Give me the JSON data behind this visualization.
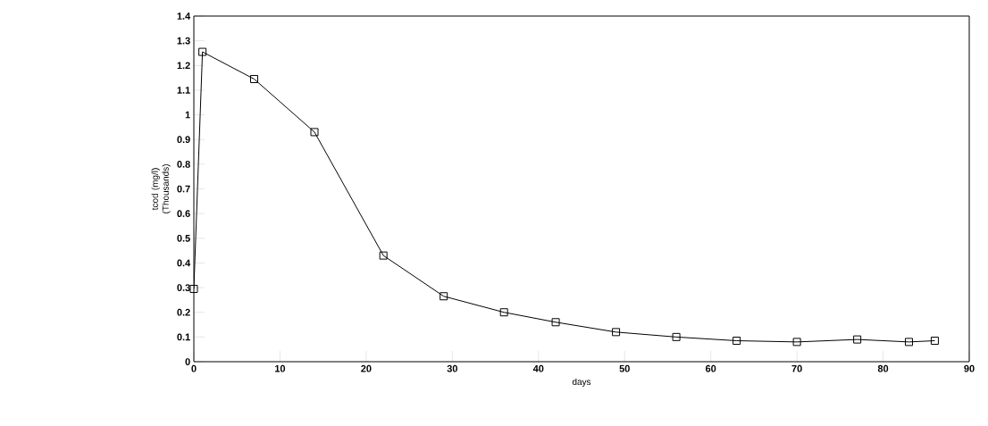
{
  "chart_data": {
    "type": "line",
    "xlabel": "days",
    "ylabel": "tcod (mg/l) (Thousands)",
    "x": [
      0,
      1,
      7,
      14,
      22,
      29,
      36,
      42,
      49,
      56,
      63,
      70,
      77,
      83,
      86
    ],
    "series": [
      {
        "color": "#000000",
        "values": [
          0.295,
          1.255,
          1.145,
          0.93,
          0.43,
          0.265,
          0.2,
          0.16,
          0.12,
          0.1,
          0.085,
          0.08,
          0.09,
          0.08,
          0.085
        ]
      }
    ],
    "xlim": [
      0,
      90
    ],
    "ylim": [
      0,
      1.4
    ],
    "xticks": [
      0,
      10,
      20,
      30,
      40,
      50,
      60,
      70,
      80,
      90
    ],
    "yticks": [
      0,
      0.1,
      0.2,
      0.3,
      0.4,
      0.5,
      0.6,
      0.7,
      0.8,
      0.9,
      1,
      1.1,
      1.2,
      1.3,
      1.4
    ],
    "marker": "square",
    "line_style": "solid",
    "grid": false
  }
}
